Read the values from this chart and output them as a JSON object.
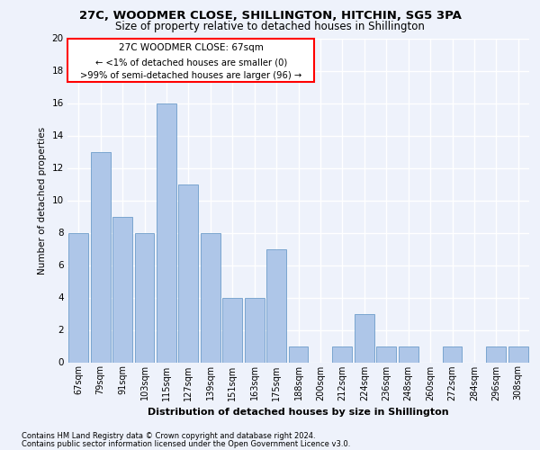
{
  "title1": "27C, WOODMER CLOSE, SHILLINGTON, HITCHIN, SG5 3PA",
  "title2": "Size of property relative to detached houses in Shillington",
  "xlabel": "Distribution of detached houses by size in Shillington",
  "ylabel": "Number of detached properties",
  "categories": [
    "67sqm",
    "79sqm",
    "91sqm",
    "103sqm",
    "115sqm",
    "127sqm",
    "139sqm",
    "151sqm",
    "163sqm",
    "175sqm",
    "188sqm",
    "200sqm",
    "212sqm",
    "224sqm",
    "236sqm",
    "248sqm",
    "260sqm",
    "272sqm",
    "284sqm",
    "296sqm",
    "308sqm"
  ],
  "values": [
    8,
    13,
    9,
    8,
    16,
    11,
    8,
    4,
    4,
    7,
    1,
    0,
    1,
    3,
    1,
    1,
    0,
    1,
    0,
    1,
    1
  ],
  "bar_color": "#aec6e8",
  "bar_edge_color": "#5a8fc2",
  "annotation_title": "27C WOODMER CLOSE: 67sqm",
  "annotation_line1": "← <1% of detached houses are smaller (0)",
  "annotation_line2": ">99% of semi-detached houses are larger (96) →",
  "ylim": [
    0,
    20
  ],
  "yticks": [
    0,
    2,
    4,
    6,
    8,
    10,
    12,
    14,
    16,
    18,
    20
  ],
  "background_color": "#eef2fb",
  "plot_bg_color": "#eef2fb",
  "grid_color": "#ffffff",
  "footer1": "Contains HM Land Registry data © Crown copyright and database right 2024.",
  "footer2": "Contains public sector information licensed under the Open Government Licence v3.0."
}
